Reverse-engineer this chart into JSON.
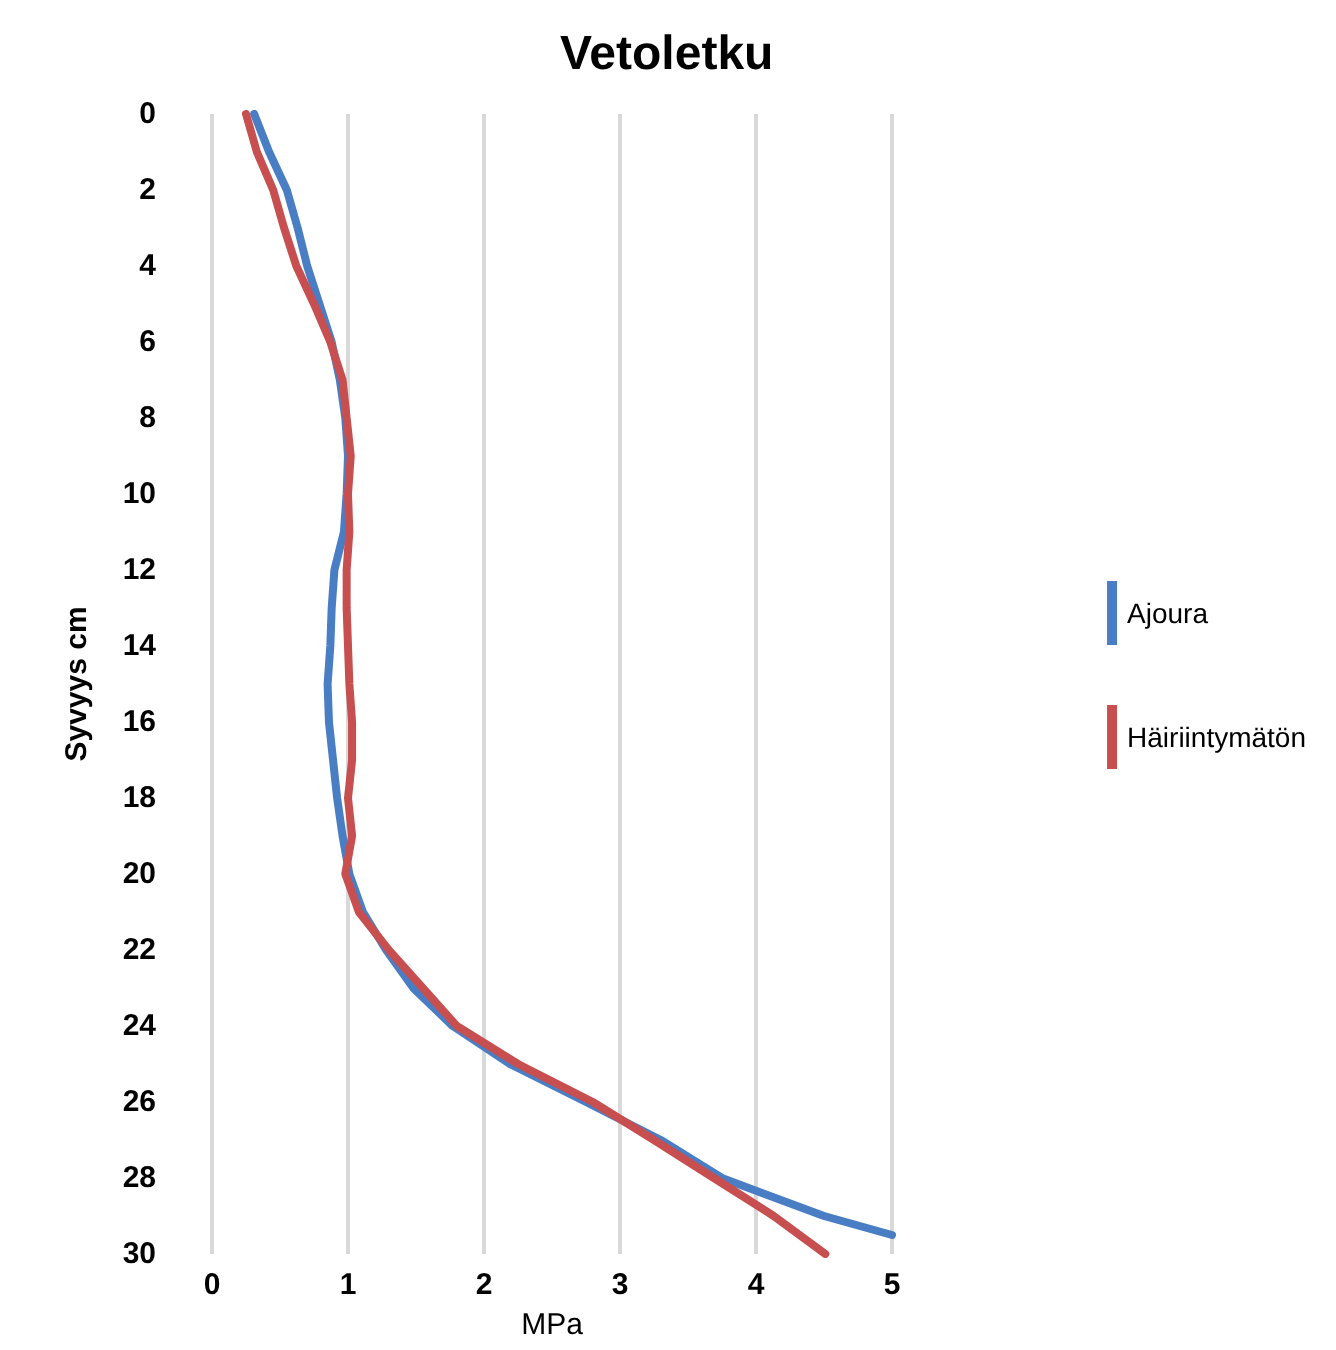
{
  "chart_data": {
    "type": "line",
    "title": "Vetoletku",
    "xlabel": "MPa",
    "ylabel": "Syvyys cm",
    "xlim": [
      0,
      5
    ],
    "xticks": [
      0,
      1,
      2,
      3,
      4,
      5
    ],
    "ylim": [
      30,
      0
    ],
    "yticks": [
      0,
      2,
      4,
      6,
      8,
      10,
      12,
      14,
      16,
      18,
      20,
      22,
      24,
      26,
      28,
      30
    ],
    "grid": "x",
    "legend": "right",
    "marker": "none",
    "line_style": "solid",
    "series": [
      {
        "name": "Ajoura",
        "color": "#4a7ec4",
        "x": [
          0.31,
          0.42,
          0.55,
          0.63,
          0.7,
          0.79,
          0.88,
          0.94,
          0.98,
          1.0,
          0.99,
          0.97,
          0.9,
          0.88,
          0.87,
          0.85,
          0.86,
          0.89,
          0.92,
          0.96,
          1.01,
          1.11,
          1.28,
          1.48,
          1.77,
          2.19,
          2.75,
          3.3,
          3.75,
          4.5,
          5.0
        ],
        "values": [
          0,
          1,
          2,
          3,
          4,
          5,
          6,
          7,
          8,
          9,
          10,
          11,
          12,
          13,
          14,
          15,
          16,
          17,
          18,
          19,
          20,
          21,
          22,
          23,
          24,
          25,
          26,
          27,
          28,
          29,
          29.5
        ]
      },
      {
        "name": "Häiriintymätön",
        "color": "#c84f4f",
        "x": [
          0.25,
          0.33,
          0.45,
          0.53,
          0.62,
          0.75,
          0.87,
          0.96,
          0.99,
          1.02,
          1.0,
          1.01,
          0.99,
          0.99,
          1.0,
          1.01,
          1.03,
          1.03,
          1.0,
          1.03,
          0.98,
          1.08,
          1.3,
          1.55,
          1.8,
          2.25,
          2.8,
          3.25,
          3.69,
          4.13,
          4.51
        ],
        "values": [
          0,
          1,
          2,
          3,
          4,
          5,
          6,
          7,
          8,
          9,
          10,
          11,
          12,
          13,
          14,
          15,
          16,
          17,
          18,
          19,
          20,
          21,
          22,
          23,
          24,
          25,
          26,
          27,
          28,
          29,
          30
        ]
      }
    ]
  }
}
